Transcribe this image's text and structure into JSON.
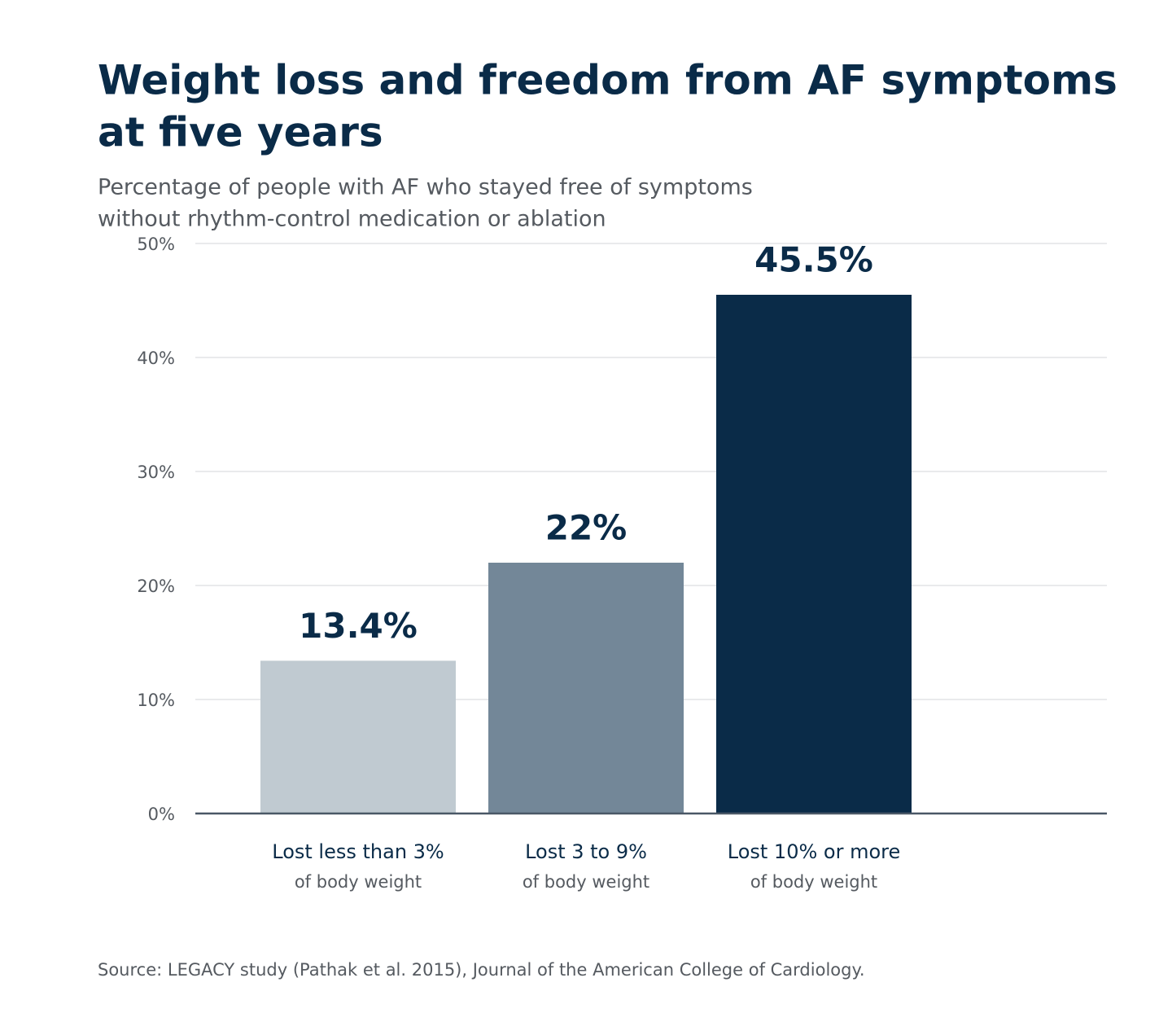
{
  "chart_data": {
    "type": "bar",
    "title": [
      "Weight loss and freedom from AF symptoms",
      "at five years"
    ],
    "subtitle": [
      "Percentage of people with AF who stayed free of symptoms",
      "without rhythm-control medication or ablation"
    ],
    "categories": [
      "Lost less than 3%",
      "Lost 3 to 9%",
      "Lost 10% or more"
    ],
    "category_notes": [
      "of body weight",
      "of body weight",
      "of body weight"
    ],
    "values": [
      13.4,
      22,
      45.5
    ],
    "value_labels": [
      "13.4%",
      "22%",
      "45.5%"
    ],
    "colors": [
      "#c0cad1",
      "#738798",
      "#0a2b48"
    ],
    "ylim": [
      0,
      50
    ],
    "yticks": [
      {
        "value": 0,
        "label": "0%"
      },
      {
        "value": 10,
        "label": "10%"
      },
      {
        "value": 20,
        "label": "20%"
      },
      {
        "value": 30,
        "label": "30%"
      },
      {
        "value": 40,
        "label": "40%"
      },
      {
        "value": 50,
        "label": "50%"
      }
    ],
    "grid": true,
    "source": "Source: LEGACY study (Pathak et al. 2015), Journal of the American College of Cardiology."
  }
}
